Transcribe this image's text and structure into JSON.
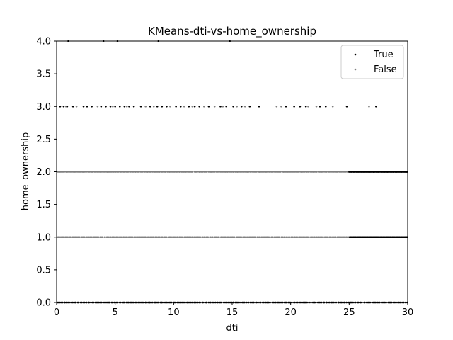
{
  "chart_data": {
    "type": "scatter",
    "title": "KMeans-dti-vs-home_ownership",
    "xlabel": "dti",
    "ylabel": "home_ownership",
    "xlim": [
      0,
      30
    ],
    "ylim": [
      0,
      4
    ],
    "xticks": [
      0,
      5,
      10,
      15,
      20,
      25,
      30
    ],
    "yticks": [
      0.0,
      0.5,
      1.0,
      1.5,
      2.0,
      2.5,
      3.0,
      3.5,
      4.0
    ],
    "xtick_labels": [
      "0",
      "5",
      "10",
      "15",
      "20",
      "25",
      "30"
    ],
    "ytick_labels": [
      "0.0",
      "0.5",
      "1.0",
      "1.5",
      "2.0",
      "2.5",
      "3.0",
      "3.5",
      "4.0"
    ],
    "grid": false,
    "legend": {
      "placement": "top-right"
    },
    "series": [
      {
        "name": "True",
        "color": "#000000",
        "points": [
          {
            "y": 0,
            "x_range": [
              0,
              30
            ],
            "count": 260
          },
          {
            "y": 1,
            "x_range": [
              25,
              30
            ],
            "count": 80
          },
          {
            "y": 2,
            "x_range": [
              25,
              30
            ],
            "count": 80
          },
          {
            "y": 3,
            "x_values": [
              0.3,
              0.6,
              0.9,
              1.4,
              2.3,
              2.6,
              3.0,
              3.8,
              4.2,
              4.6,
              5.0,
              5.4,
              5.8,
              6.2,
              6.6,
              7.2,
              8.0,
              8.6,
              9.0,
              9.4,
              10.2,
              10.6,
              11.3,
              11.8,
              12.2,
              13.0,
              14.0,
              14.5,
              15.1,
              15.8,
              16.5,
              17.3,
              19.6,
              20.3,
              20.8,
              21.3,
              22.5,
              23.0,
              24.8,
              27.3
            ]
          },
          {
            "y": 4,
            "x_values": [
              1.0,
              4.0,
              5.2,
              8.7,
              14.8
            ]
          }
        ]
      },
      {
        "name": "False",
        "color": "#808080",
        "points": [
          {
            "y": 1,
            "x_range": [
              0,
              30
            ],
            "count": 320
          },
          {
            "y": 2,
            "x_range": [
              0,
              30
            ],
            "count": 320
          },
          {
            "y": 3,
            "x_values": [
              0.8,
              1.7,
              3.5,
              4.8,
              6.0,
              7.6,
              8.3,
              9.7,
              10.9,
              11.6,
              12.6,
              13.5,
              14.2,
              15.4,
              16.1,
              18.8,
              19.2,
              21.5,
              22.2,
              23.6,
              26.7
            ]
          }
        ]
      }
    ]
  }
}
